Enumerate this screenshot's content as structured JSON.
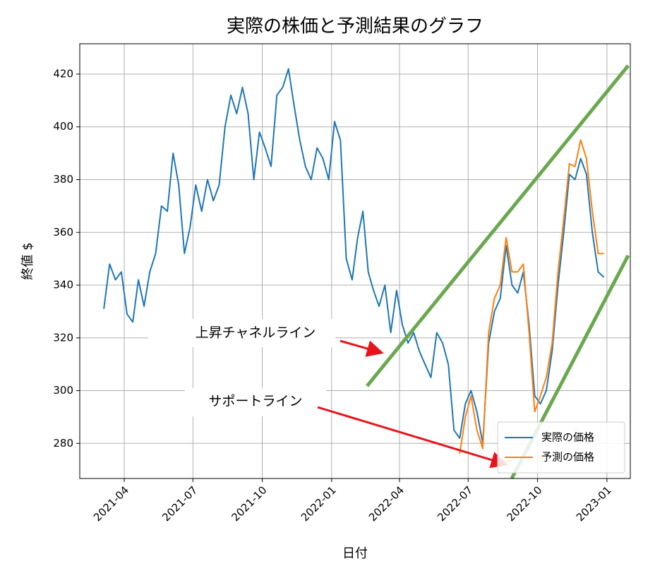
{
  "chart_data": {
    "type": "line",
    "title": "実際の株価と予測結果のグラフ",
    "x_label": "日付",
    "y_label": "終値 $",
    "x": [
      "2021-03",
      "2021-03",
      "2021-03",
      "2021-03",
      "2021-04",
      "2021-04",
      "2021-04",
      "2021-04",
      "2021-05",
      "2021-05",
      "2021-05",
      "2021-05",
      "2021-06",
      "2021-06",
      "2021-06",
      "2021-06",
      "2021-07",
      "2021-07",
      "2021-07",
      "2021-07",
      "2021-08",
      "2021-08",
      "2021-08",
      "2021-08",
      "2021-09",
      "2021-09",
      "2021-09",
      "2021-09",
      "2021-10",
      "2021-10",
      "2021-10",
      "2021-10",
      "2021-11",
      "2021-11",
      "2021-11",
      "2021-11",
      "2021-12",
      "2021-12",
      "2021-12",
      "2021-12",
      "2022-01",
      "2022-01",
      "2022-01",
      "2022-01",
      "2022-02",
      "2022-02",
      "2022-02",
      "2022-02",
      "2022-03",
      "2022-03",
      "2022-03",
      "2022-03",
      "2022-04",
      "2022-04",
      "2022-04",
      "2022-04",
      "2022-05",
      "2022-05",
      "2022-05",
      "2022-05",
      "2022-06",
      "2022-06",
      "2022-06",
      "2022-06",
      "2022-07",
      "2022-07",
      "2022-07",
      "2022-07",
      "2022-08",
      "2022-08",
      "2022-08",
      "2022-08",
      "2022-09",
      "2022-09",
      "2022-09",
      "2022-09",
      "2022-10",
      "2022-10",
      "2022-10",
      "2022-10",
      "2022-11",
      "2022-11",
      "2022-11",
      "2022-11",
      "2022-12",
      "2022-12",
      "2022-12",
      "2022-12"
    ],
    "series": [
      {
        "name": "実際の価格",
        "color": "#1f77b4",
        "values": [
          331,
          348,
          342,
          345,
          329,
          326,
          342,
          332,
          345,
          352,
          370,
          368,
          390,
          378,
          352,
          362,
          378,
          368,
          380,
          372,
          378,
          400,
          412,
          405,
          415,
          405,
          380,
          398,
          392,
          385,
          412,
          415,
          422,
          408,
          395,
          385,
          380,
          392,
          388,
          380,
          402,
          395,
          350,
          342,
          358,
          368,
          345,
          338,
          332,
          340,
          322,
          338,
          325,
          318,
          322,
          315,
          310,
          305,
          322,
          318,
          310,
          285,
          282,
          295,
          300,
          292,
          280,
          318,
          330,
          335,
          355,
          340,
          337,
          345,
          325,
          298,
          295,
          300,
          315,
          340,
          360,
          382,
          380,
          388,
          382,
          360,
          345,
          343
        ]
      },
      {
        "name": "予測の価格",
        "color": "#ff7f0e",
        "values": [
          null,
          null,
          null,
          null,
          null,
          null,
          null,
          null,
          null,
          null,
          null,
          null,
          null,
          null,
          null,
          null,
          null,
          null,
          null,
          null,
          null,
          null,
          null,
          null,
          null,
          null,
          null,
          null,
          null,
          null,
          null,
          null,
          null,
          null,
          null,
          null,
          null,
          null,
          null,
          null,
          null,
          null,
          null,
          null,
          null,
          null,
          null,
          null,
          null,
          null,
          null,
          null,
          null,
          null,
          null,
          null,
          null,
          null,
          null,
          null,
          null,
          null,
          276,
          290,
          298,
          285,
          278,
          322,
          335,
          340,
          358,
          345,
          345,
          348,
          322,
          292,
          298,
          305,
          318,
          345,
          365,
          386,
          385,
          395,
          388,
          368,
          352,
          352
        ]
      }
    ],
    "xlim": [
      "2021-02",
      "2023-02"
    ],
    "xticks": [
      "2021-04",
      "2021-07",
      "2021-10",
      "2022-01",
      "2022-04",
      "2022-07",
      "2022-10",
      "2023-01"
    ],
    "ylim": [
      266.7,
      431.5
    ],
    "yticks": [
      280,
      300,
      320,
      340,
      360,
      380,
      400,
      420
    ],
    "grid": true,
    "legend": "lower right",
    "annotations": [
      "上昇チャネルライン",
      "サポートライン"
    ]
  }
}
